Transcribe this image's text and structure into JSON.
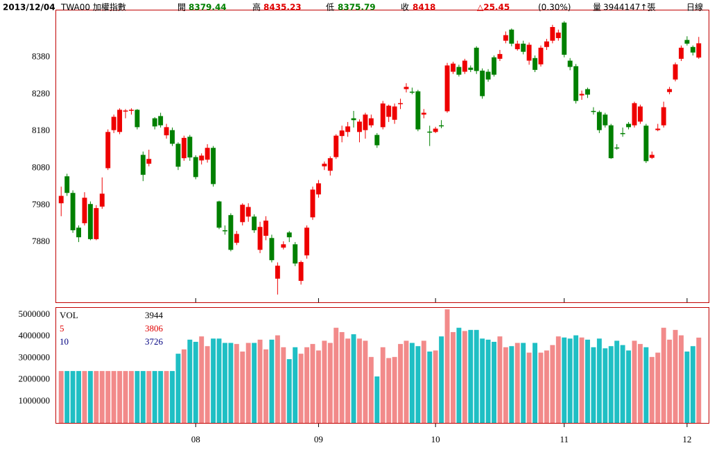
{
  "chart_data": {
    "type": "candlestick",
    "header": [
      {
        "text": "2013/12/04",
        "color": "#000000",
        "bold": true
      },
      {
        "text": "TWA00 加權指數",
        "color": "#000000"
      },
      {
        "text": "開",
        "color": "#000000"
      },
      {
        "text": "8379.44",
        "color": "#008000",
        "bold": true
      },
      {
        "text": "高",
        "color": "#000000"
      },
      {
        "text": "8435.23",
        "color": "#e00000",
        "bold": true
      },
      {
        "text": "低",
        "color": "#000000"
      },
      {
        "text": "8375.79",
        "color": "#008000",
        "bold": true
      },
      {
        "text": "收",
        "color": "#000000"
      },
      {
        "text": "8418",
        "color": "#e00000",
        "bold": true
      },
      {
        "text": "△25.45",
        "color": "#e00000",
        "bold": true
      },
      {
        "text": "(0.30%)",
        "color": "#000000"
      },
      {
        "text": "量",
        "color": "#000000"
      },
      {
        "text": "3944147↑張",
        "color": "#000000"
      },
      {
        "text": "日線",
        "color": "#000000"
      }
    ],
    "up_color": "#ee0000",
    "down_color": "#008000",
    "vol_up_color": "#f28a8a",
    "vol_down_color": "#1fbfc4",
    "ylim": [
      7717,
      8507
    ],
    "yticks": [
      7880,
      7980,
      8080,
      8180,
      8280,
      8380
    ],
    "vol_ylim": [
      0,
      5320000
    ],
    "vol_yticks": [
      1000000,
      2000000,
      3000000,
      4000000,
      5000000
    ],
    "xticks": [
      {
        "value": 23,
        "label": "08"
      },
      {
        "value": 44,
        "label": "09"
      },
      {
        "value": 64,
        "label": "10"
      },
      {
        "value": 86,
        "label": "11"
      },
      {
        "value": 107,
        "label": "12"
      }
    ],
    "volume_legend": [
      {
        "label": "VOL",
        "value": 3944,
        "color": "#000000"
      },
      {
        "label": "5",
        "value": 3806,
        "color": "#e00000"
      },
      {
        "label": "10",
        "value": 3726,
        "color": "#000080"
      }
    ],
    "open": [
      7985,
      8058,
      8013,
      7919,
      7931,
      7983,
      7888,
      7976,
      8080,
      8183,
      8178,
      8235,
      8237,
      8238,
      8116,
      8092,
      8215,
      8221,
      8169,
      8183,
      8146,
      8107,
      8165,
      8110,
      8101,
      8103,
      8135,
      7990,
      7912,
      7953,
      7878,
      7934,
      7949,
      7949,
      7859,
      7897,
      7891,
      7781,
      7865,
      7906,
      7874,
      7775,
      7844,
      7947,
      8009,
      8085,
      8073,
      8110,
      8167,
      8178,
      8215,
      8178,
      8183,
      8196,
      8170,
      8191,
      8219,
      8211,
      8255,
      8294,
      8287,
      8288,
      8225,
      8179,
      8178,
      8196,
      8234,
      8341,
      8354,
      8341,
      8352,
      8406,
      8344,
      8341,
      8380,
      8376,
      8425,
      8455,
      8402,
      8417,
      8371,
      8378,
      8361,
      8408,
      8425,
      8432,
      8474,
      8371,
      8356,
      8277,
      8294,
      8235,
      8232,
      8225,
      8196,
      8136,
      8175,
      8200,
      8196,
      8206,
      8195,
      8108,
      8183,
      8196,
      8286,
      8320,
      8376,
      8427,
      8408,
      8379.44
    ],
    "high": [
      8030,
      8065,
      8020,
      7925,
      8015,
      7990,
      7980,
      8055,
      8185,
      8225,
      8242,
      8240,
      8242,
      8240,
      8125,
      8130,
      8218,
      8230,
      8200,
      8190,
      8150,
      8168,
      8170,
      8115,
      8120,
      8145,
      8140,
      7992,
      7925,
      7958,
      7910,
      7985,
      7985,
      7955,
      7935,
      7950,
      7900,
      7825,
      7882,
      7910,
      7880,
      7830,
      7925,
      8030,
      8048,
      8098,
      8112,
      8172,
      8195,
      8205,
      8235,
      8212,
      8230,
      8225,
      8175,
      8262,
      8252,
      8255,
      8268,
      8310,
      8298,
      8292,
      8240,
      8195,
      8192,
      8210,
      8365,
      8368,
      8360,
      8376,
      8358,
      8410,
      8350,
      8348,
      8385,
      8400,
      8450,
      8458,
      8425,
      8425,
      8420,
      8385,
      8412,
      8430,
      8468,
      8455,
      8478,
      8378,
      8362,
      8290,
      8298,
      8245,
      8236,
      8230,
      8200,
      8145,
      8190,
      8205,
      8260,
      8252,
      8200,
      8125,
      8200,
      8260,
      8300,
      8366,
      8412,
      8437,
      8412,
      8435.23
    ],
    "low": [
      7950,
      8005,
      7905,
      7880,
      7925,
      7885,
      7885,
      7970,
      8075,
      8175,
      8172,
      8215,
      8225,
      8185,
      8045,
      8085,
      8185,
      8190,
      8160,
      8140,
      8075,
      8100,
      8100,
      8050,
      8090,
      8095,
      8030,
      7915,
      7900,
      7855,
      7872,
      7925,
      7935,
      7905,
      7850,
      7885,
      7825,
      7738,
      7860,
      7880,
      7815,
      7765,
      7835,
      7940,
      8000,
      8075,
      8060,
      8105,
      8150,
      8165,
      8190,
      8150,
      8160,
      8190,
      8135,
      8185,
      8205,
      8200,
      8240,
      8285,
      8280,
      8180,
      8215,
      8140,
      8175,
      8188,
      8230,
      8335,
      8328,
      8335,
      8340,
      8335,
      8268,
      8314,
      8328,
      8370,
      8418,
      8410,
      8398,
      8388,
      8360,
      8340,
      8355,
      8400,
      8418,
      8425,
      8380,
      8345,
      8255,
      8265,
      8270,
      8225,
      8175,
      8190,
      8105,
      8130,
      8165,
      8185,
      8190,
      8200,
      8094,
      8105,
      8180,
      8190,
      8280,
      8315,
      8370,
      8412,
      8385,
      8375.79
    ],
    "close": [
      8005,
      8013,
      7912,
      7893,
      8000,
      7888,
      7972,
      8011,
      8178,
      8219,
      8238,
      8236,
      8238,
      8191,
      8062,
      8105,
      8193,
      8196,
      8191,
      8146,
      8084,
      8162,
      8109,
      8056,
      8114,
      8135,
      8037,
      7919,
      7910,
      7859,
      7902,
      7981,
      7975,
      7912,
      7921,
      7938,
      7831,
      7816,
      7874,
      7893,
      7822,
      7826,
      7919,
      8022,
      8039,
      8092,
      8107,
      8168,
      8182,
      8193,
      8210,
      8206,
      8225,
      8215,
      8142,
      8255,
      8249,
      8247,
      8256,
      8300,
      8286,
      8185,
      8230,
      8178,
      8187,
      8195,
      8358,
      8363,
      8333,
      8371,
      8346,
      8343,
      8275,
      8320,
      8333,
      8389,
      8440,
      8417,
      8417,
      8395,
      8414,
      8346,
      8406,
      8423,
      8462,
      8447,
      8387,
      8354,
      8262,
      8281,
      8279,
      8234,
      8183,
      8196,
      8107,
      8135,
      8174,
      8191,
      8256,
      8247,
      8099,
      8116,
      8187,
      8245,
      8294,
      8361,
      8406,
      8417,
      8393,
      8418
    ],
    "volume": [
      2400000,
      2400000,
      2400000,
      2400000,
      2400000,
      2400000,
      2400000,
      2400000,
      2400000,
      2400000,
      2400000,
      2400000,
      2400000,
      2400000,
      2400000,
      2400000,
      2400000,
      2400000,
      2400000,
      2400000,
      3200000,
      3400000,
      3850000,
      3750000,
      4000000,
      3550000,
      3900000,
      3900000,
      3700000,
      3700000,
      3650000,
      3300000,
      3700000,
      3700000,
      3850000,
      3400000,
      3850000,
      4050000,
      3500000,
      2950000,
      3500000,
      3200000,
      3500000,
      3650000,
      3350000,
      3800000,
      3700000,
      4400000,
      4200000,
      3900000,
      4100000,
      3900000,
      3800000,
      3050000,
      2150000,
      3500000,
      3000000,
      3050000,
      3650000,
      3800000,
      3700000,
      3550000,
      3800000,
      3300000,
      3350000,
      4000000,
      5250000,
      4200000,
      4400000,
      4250000,
      4300000,
      4300000,
      3900000,
      3850000,
      3750000,
      4000000,
      3500000,
      3550000,
      3700000,
      3700000,
      3250000,
      3700000,
      3250000,
      3350000,
      3600000,
      4000000,
      3950000,
      3900000,
      4050000,
      3950000,
      3850000,
      3500000,
      3900000,
      3450000,
      3550000,
      3800000,
      3600000,
      3350000,
      3800000,
      3650000,
      3500000,
      3050000,
      3250000,
      4400000,
      3850000,
      4300000,
      4050000,
      3300000,
      3550000,
      3944147
    ]
  }
}
